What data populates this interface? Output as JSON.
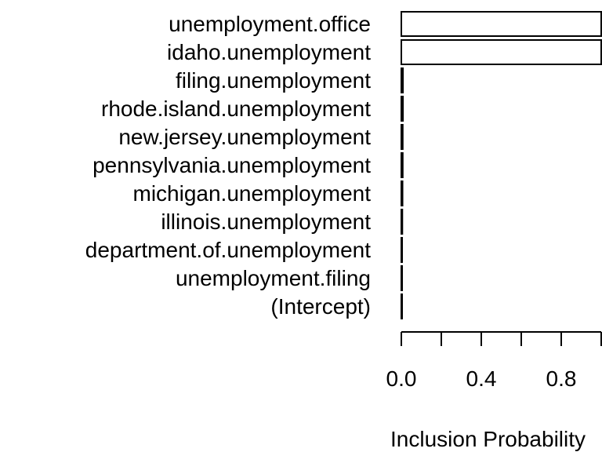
{
  "chart_data": {
    "type": "bar",
    "orientation": "horizontal",
    "categories": [
      "unemployment.office",
      "idaho.unemployment",
      "filing.unemployment",
      "rhode.island.unemployment",
      "new.jersey.unemployment",
      "pennsylvania.unemployment",
      "michigan.unemployment",
      "illinois.unemployment",
      "department.of.unemployment",
      "unemployment.filing",
      "(Intercept)"
    ],
    "values": [
      1.0,
      1.0,
      0.008,
      0.008,
      0.007,
      0.007,
      0.006,
      0.005,
      0.004,
      0.004,
      0.003
    ],
    "title": "",
    "xlabel": "Inclusion Probability",
    "ylabel": "",
    "xlim": [
      0,
      1
    ],
    "x_ticks": [
      0,
      0.2,
      0.4,
      0.6,
      0.8,
      1.0
    ],
    "x_tick_labels": [
      "0.0",
      "",
      "0.4",
      "",
      "0.8",
      ""
    ],
    "grid": false,
    "legend": "none",
    "bar_fill": "#ffffff",
    "bar_stroke": "#000000"
  }
}
